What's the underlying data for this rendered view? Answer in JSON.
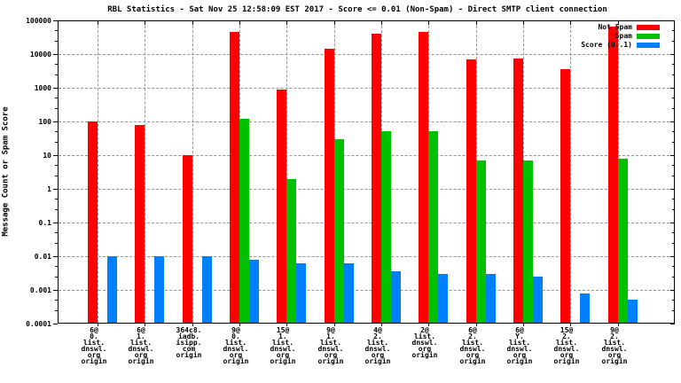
{
  "title": "RBL Statistics - Sat Nov 25 12:58:09 EST 2017 - Score <= 0.01 (Non-Spam) - Direct SMTP client connection",
  "ylabel": "Message Count or Spam Score",
  "chart_data": {
    "type": "bar",
    "y_scale": "log10",
    "ylim": [
      0.0001,
      100000
    ],
    "ytick_labels": [
      "100000",
      "10000",
      "1000",
      "100",
      "10",
      "1",
      "0.1",
      "0.01",
      "0.001",
      "0.0001"
    ],
    "grid": "dashed gray, horizontal at decades and vertical at cluster centers",
    "legend_position": "top-right-inside",
    "background": "#ffffff",
    "categories": [
      [
        "6@",
        "0.",
        "list.",
        "dnswl.",
        "org",
        "origin"
      ],
      [
        "6@",
        "1.",
        "list.",
        "dnswl.",
        "org",
        "origin"
      ],
      [
        "364c8.",
        "iadb.",
        "isipp.",
        "com",
        "origin"
      ],
      [
        "9@",
        "0.",
        "list.",
        "dnswl.",
        "org",
        "origin"
      ],
      [
        "15@",
        "1.",
        "list.",
        "dnswl.",
        "org",
        "origin"
      ],
      [
        "9@",
        "1.",
        "list.",
        "dnswl.",
        "org",
        "origin"
      ],
      [
        "4@",
        "2.",
        "list.",
        "dnswl.",
        "org",
        "origin"
      ],
      [
        "2@",
        "list.",
        "dnswl.",
        "org",
        "origin"
      ],
      [
        "6@",
        "2.",
        "list.",
        "dnswl.",
        "org",
        "origin"
      ],
      [
        "6@",
        "Y.",
        "list.",
        "dnswl.",
        "org",
        "origin"
      ],
      [
        "15@",
        "2.",
        "list.",
        "dnswl.",
        "org",
        "origin"
      ],
      [
        "9@",
        "2.",
        "list.",
        "dnswl.",
        "org",
        "origin"
      ]
    ],
    "series": [
      {
        "name": "Not Spam",
        "color": "#ff0000",
        "values": [
          100,
          80,
          10,
          45000,
          900,
          14000,
          40000,
          45000,
          7000,
          7500,
          3500,
          65000
        ]
      },
      {
        "name": "Spam",
        "color": "#00c000",
        "values": [
          null,
          null,
          null,
          120,
          2,
          30,
          50,
          50,
          7,
          7,
          null,
          8
        ]
      },
      {
        "name": "Score (0..1)",
        "color": "#0080ff",
        "values": [
          0.01,
          0.01,
          0.01,
          0.008,
          0.006,
          0.006,
          0.0035,
          0.003,
          0.003,
          0.0025,
          0.0008,
          0.0005
        ]
      }
    ]
  }
}
